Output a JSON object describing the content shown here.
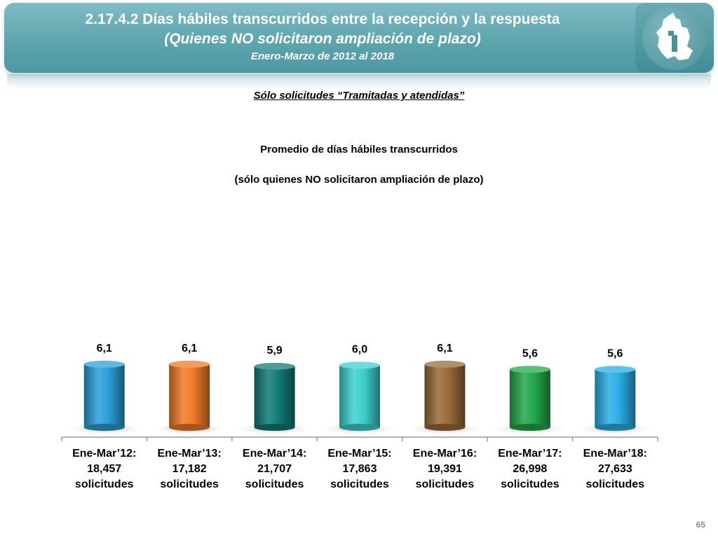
{
  "header": {
    "title_line1": "2.17.4.2 Días hábiles transcurridos entre la recepción y la respuesta",
    "title_line2": "(Quienes NO solicitaron ampliación de plazo)",
    "title_line3": "Enero-Marzo de 2012 al 2018"
  },
  "subtitle": "Sólo solicitudes “Tramitadas y atendidas”",
  "page_number": "65",
  "chart_data": {
    "type": "bar",
    "title": "Promedio de días hábiles transcurridos",
    "subtitle": "(sólo quienes NO solicitaron ampliación de plazo)",
    "categories": [
      [
        "Ene-Mar’12:",
        "18,457",
        "solicitudes"
      ],
      [
        "Ene-Mar’13:",
        "17,182",
        "solicitudes"
      ],
      [
        "Ene-Mar’14:",
        "21,707",
        "solicitudes"
      ],
      [
        "Ene-Mar’15:",
        "17,863",
        "solicitudes"
      ],
      [
        "Ene-Mar’16:",
        "19,391",
        "solicitudes"
      ],
      [
        "Ene-Mar’17:",
        "26,998",
        "solicitudes"
      ],
      [
        "Ene-Mar’18:",
        "27,633",
        "solicitudes"
      ]
    ],
    "values": [
      6.1,
      6.1,
      5.9,
      6.0,
      6.1,
      5.6,
      5.6
    ],
    "value_labels": [
      "6,1",
      "6,1",
      "5,9",
      "6,0",
      "6,1",
      "5,6",
      "5,6"
    ],
    "colors": [
      "#2a9fd8",
      "#f07a28",
      "#137a78",
      "#3dcfcf",
      "#9a6a38",
      "#22a84a",
      "#2aaee6"
    ],
    "ylim": [
      0,
      6.5
    ],
    "grid": false,
    "legend": "none"
  }
}
